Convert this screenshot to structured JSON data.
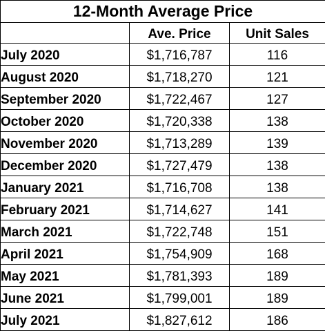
{
  "table": {
    "title": "12-Month Average Price",
    "columns": [
      "",
      "Ave. Price",
      "Unit Sales"
    ],
    "rows": [
      {
        "month": "July 2020",
        "price": "$1,716,787",
        "sales": "116"
      },
      {
        "month": "August 2020",
        "price": "$1,718,270",
        "sales": "121"
      },
      {
        "month": "September 2020",
        "price": "$1,722,467",
        "sales": "127"
      },
      {
        "month": "October 2020",
        "price": "$1,720,338",
        "sales": "138"
      },
      {
        "month": "November 2020",
        "price": "$1,713,289",
        "sales": "139"
      },
      {
        "month": "December 2020",
        "price": "$1,727,479",
        "sales": "138"
      },
      {
        "month": "January 2021",
        "price": "$1,716,708",
        "sales": "138"
      },
      {
        "month": "February 2021",
        "price": "$1,714,627",
        "sales": "141"
      },
      {
        "month": "March 2021",
        "price": "$1,722,748",
        "sales": "151"
      },
      {
        "month": "April 2021",
        "price": "$1,754,909",
        "sales": "168"
      },
      {
        "month": "May 2021",
        "price": "$1,781,393",
        "sales": "189"
      },
      {
        "month": "June 2021",
        "price": "$1,799,001",
        "sales": "189"
      },
      {
        "month": "July 2021",
        "price": "$1,827,612",
        "sales": "186"
      }
    ]
  }
}
